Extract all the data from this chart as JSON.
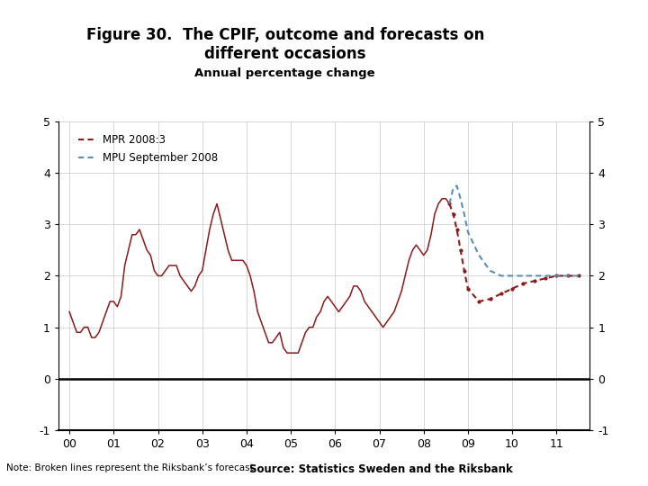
{
  "title_line1": "Figure 30.  The CPIF, outcome and forecasts on",
  "title_line2": "different occasions",
  "subtitle": "Annual percentage change",
  "note": "Note: Broken lines represent the Riksbank’s forecast",
  "source": "Source: Statistics Sweden and the Riksbank",
  "ylim": [
    -1,
    5
  ],
  "yticks": [
    -1,
    0,
    1,
    2,
    3,
    4,
    5
  ],
  "outcome_color": "#8B1A1A",
  "mpr_color": "#8B1A1A",
  "mpu_color": "#5B8DB8",
  "background_color": "#FFFFFF",
  "logo_color": "#003087",
  "bar_color": "#003087",
  "outcome_x": [
    2000.0,
    2000.083,
    2000.167,
    2000.25,
    2000.333,
    2000.417,
    2000.5,
    2000.583,
    2000.667,
    2000.75,
    2000.833,
    2000.917,
    2001.0,
    2001.083,
    2001.167,
    2001.25,
    2001.333,
    2001.417,
    2001.5,
    2001.583,
    2001.667,
    2001.75,
    2001.833,
    2001.917,
    2002.0,
    2002.083,
    2002.167,
    2002.25,
    2002.333,
    2002.417,
    2002.5,
    2002.583,
    2002.667,
    2002.75,
    2002.833,
    2002.917,
    2003.0,
    2003.083,
    2003.167,
    2003.25,
    2003.333,
    2003.417,
    2003.5,
    2003.583,
    2003.667,
    2003.75,
    2003.833,
    2003.917,
    2004.0,
    2004.083,
    2004.167,
    2004.25,
    2004.333,
    2004.417,
    2004.5,
    2004.583,
    2004.667,
    2004.75,
    2004.833,
    2004.917,
    2005.0,
    2005.083,
    2005.167,
    2005.25,
    2005.333,
    2005.417,
    2005.5,
    2005.583,
    2005.667,
    2005.75,
    2005.833,
    2005.917,
    2006.0,
    2006.083,
    2006.167,
    2006.25,
    2006.333,
    2006.417,
    2006.5,
    2006.583,
    2006.667,
    2006.75,
    2006.833,
    2006.917,
    2007.0,
    2007.083,
    2007.167,
    2007.25,
    2007.333,
    2007.417,
    2007.5,
    2007.583,
    2007.667,
    2007.75,
    2007.833,
    2007.917,
    2008.0,
    2008.083,
    2008.167,
    2008.25,
    2008.333,
    2008.417,
    2008.5,
    2008.583
  ],
  "outcome_y": [
    1.3,
    1.1,
    0.9,
    0.9,
    1.0,
    1.0,
    0.8,
    0.8,
    0.9,
    1.1,
    1.3,
    1.5,
    1.5,
    1.4,
    1.6,
    2.2,
    2.5,
    2.8,
    2.8,
    2.9,
    2.7,
    2.5,
    2.4,
    2.1,
    2.0,
    2.0,
    2.1,
    2.2,
    2.2,
    2.2,
    2.0,
    1.9,
    1.8,
    1.7,
    1.8,
    2.0,
    2.1,
    2.5,
    2.9,
    3.2,
    3.4,
    3.1,
    2.8,
    2.5,
    2.3,
    2.3,
    2.3,
    2.3,
    2.2,
    2.0,
    1.7,
    1.3,
    1.1,
    0.9,
    0.7,
    0.7,
    0.8,
    0.9,
    0.6,
    0.5,
    0.5,
    0.5,
    0.5,
    0.7,
    0.9,
    1.0,
    1.0,
    1.2,
    1.3,
    1.5,
    1.6,
    1.5,
    1.4,
    1.3,
    1.4,
    1.5,
    1.6,
    1.8,
    1.8,
    1.7,
    1.5,
    1.4,
    1.3,
    1.2,
    1.1,
    1.0,
    1.1,
    1.2,
    1.3,
    1.5,
    1.7,
    2.0,
    2.3,
    2.5,
    2.6,
    2.5,
    2.4,
    2.5,
    2.8,
    3.2,
    3.4,
    3.5,
    3.5,
    3.4
  ],
  "mpr_x": [
    2008.583,
    2008.667,
    2008.75,
    2008.833,
    2008.917,
    2009.0,
    2009.25,
    2009.5,
    2009.75,
    2010.0,
    2010.25,
    2010.5,
    2010.75,
    2011.0,
    2011.25,
    2011.5
  ],
  "mpr_y": [
    3.4,
    3.2,
    2.9,
    2.5,
    2.1,
    1.75,
    1.5,
    1.55,
    1.65,
    1.75,
    1.85,
    1.9,
    1.95,
    2.0,
    2.0,
    2.0
  ],
  "mpu_x": [
    2008.583,
    2008.667,
    2008.75,
    2008.833,
    2008.917,
    2009.0,
    2009.25,
    2009.5,
    2009.75,
    2010.0,
    2010.25,
    2010.5,
    2010.75,
    2011.0,
    2011.25,
    2011.5
  ],
  "mpu_y": [
    3.4,
    3.7,
    3.75,
    3.5,
    3.2,
    2.85,
    2.4,
    2.1,
    2.0,
    2.0,
    2.0,
    2.0,
    2.0,
    2.0,
    2.0,
    2.0
  ]
}
